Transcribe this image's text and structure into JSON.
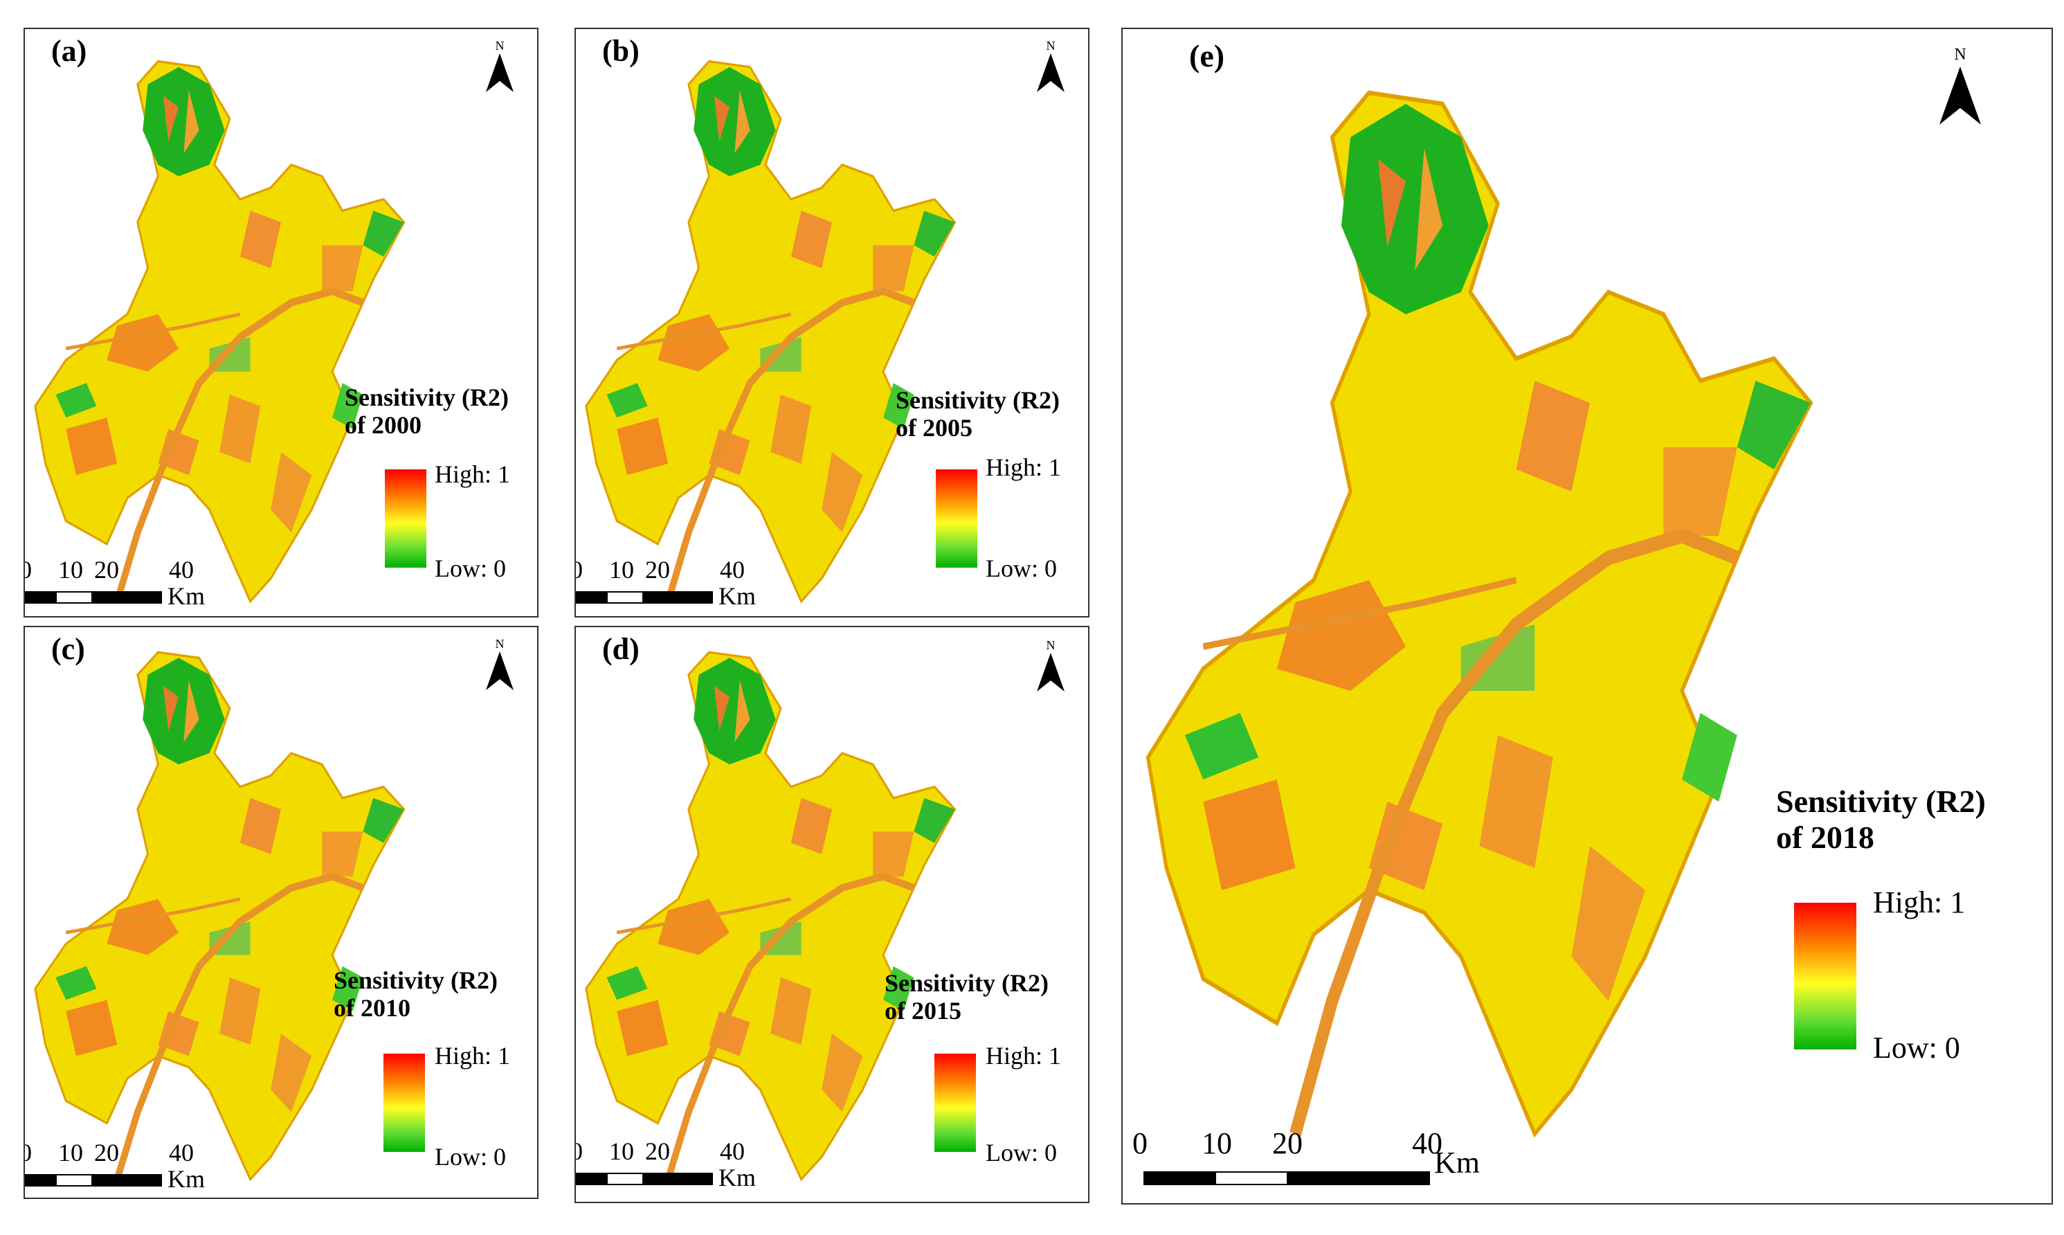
{
  "panels": [
    {
      "id": "a",
      "label": "(a)",
      "legend_title_1": "Sensitivity (R2)",
      "legend_title_2": "of 2000"
    },
    {
      "id": "b",
      "label": "(b)",
      "legend_title_1": "Sensitivity (R2)",
      "legend_title_2": "of 2005"
    },
    {
      "id": "c",
      "label": "(c)",
      "legend_title_1": "Sensitivity (R2)",
      "legend_title_2": "of 2010"
    },
    {
      "id": "d",
      "label": "(d)",
      "legend_title_1": "Sensitivity (R2)",
      "legend_title_2": "of 2015"
    },
    {
      "id": "e",
      "label": "(e)",
      "legend_title_1": "Sensitivity (R2)",
      "legend_title_2": "of 2018"
    }
  ],
  "legend": {
    "high": "High: 1",
    "low": "Low: 0"
  },
  "north_label": "N",
  "scale": {
    "ticks": [
      "0",
      "10",
      "20",
      "40"
    ],
    "unit": "Km"
  },
  "colors": {
    "high": "#ff0000",
    "mid_high": "#ff8800",
    "mid": "#ffff22",
    "low": "#00b000",
    "river": "#e8922a"
  }
}
